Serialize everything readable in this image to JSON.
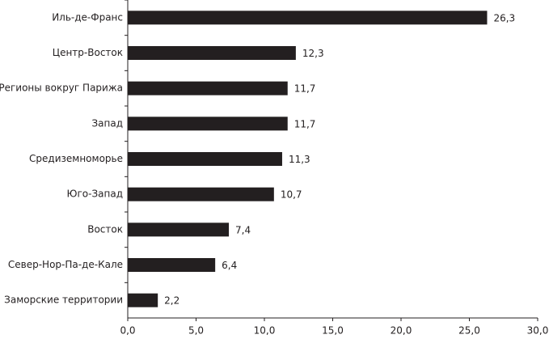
{
  "chart_data": {
    "type": "hbar",
    "categories": [
      "Иль-де-Франс",
      "Центр-Восток",
      "Регионы вокруг Парижа",
      "Запад",
      "Средиземноморье",
      "Юго-Запад",
      "Восток",
      "Север-Нор-Па-де-Кале",
      "Заморские территории"
    ],
    "values": [
      26.3,
      12.3,
      11.7,
      11.7,
      11.3,
      10.7,
      7.4,
      6.4,
      2.2
    ],
    "value_labels": [
      "26,3",
      "12,3",
      "11,7",
      "11,7",
      "11,3",
      "10,7",
      "7,4",
      "6,4",
      "2,2"
    ],
    "color": "#231f20",
    "xlim": [
      0,
      30
    ],
    "xticks": [
      {
        "value": 0,
        "label": "0,0"
      },
      {
        "value": 5,
        "label": "5,0"
      },
      {
        "value": 10,
        "label": "10,0"
      },
      {
        "value": 15,
        "label": "15,0"
      },
      {
        "value": 20,
        "label": "20,0"
      },
      {
        "value": 25,
        "label": "25,0"
      },
      {
        "value": 30,
        "label": "30,0"
      }
    ],
    "grid": false
  }
}
